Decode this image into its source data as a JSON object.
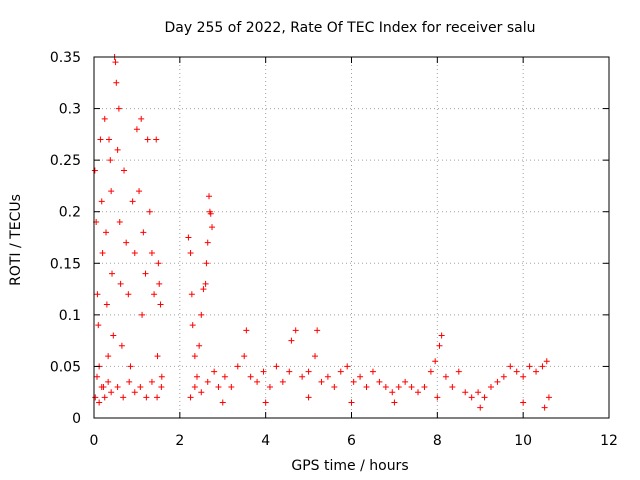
{
  "chart_data": {
    "type": "scatter",
    "title": "Day 255 of 2022, Rate Of TEC Index for receiver salu",
    "xlabel": "GPS time / hours",
    "ylabel": "ROTI / TECUs",
    "xlim": [
      0,
      12
    ],
    "ylim": [
      0,
      0.35
    ],
    "xticks": [
      0,
      2,
      4,
      6,
      8,
      10,
      12
    ],
    "xtick_labels": [
      "0",
      "2",
      "4",
      "6",
      "8",
      "10",
      "12"
    ],
    "yticks": [
      0,
      0.05,
      0.1,
      0.15,
      0.2,
      0.25,
      0.3,
      0.35
    ],
    "ytick_labels": [
      "0",
      "0.05",
      "0.1",
      "0.15",
      "0.2",
      "0.25",
      "0.3",
      "0.35"
    ],
    "grid": true,
    "marker": "plus",
    "color": "#ff0000",
    "series": [
      {
        "name": "ROTI",
        "points": [
          [
            0.02,
            0.24
          ],
          [
            0.05,
            0.19
          ],
          [
            0.08,
            0.12
          ],
          [
            0.1,
            0.09
          ],
          [
            0.12,
            0.05
          ],
          [
            0.15,
            0.27
          ],
          [
            0.18,
            0.21
          ],
          [
            0.2,
            0.16
          ],
          [
            0.22,
            0.03
          ],
          [
            0.25,
            0.29
          ],
          [
            0.28,
            0.18
          ],
          [
            0.3,
            0.11
          ],
          [
            0.33,
            0.06
          ],
          [
            0.35,
            0.27
          ],
          [
            0.38,
            0.25
          ],
          [
            0.4,
            0.22
          ],
          [
            0.42,
            0.14
          ],
          [
            0.45,
            0.08
          ],
          [
            0.48,
            0.35
          ],
          [
            0.5,
            0.345
          ],
          [
            0.52,
            0.325
          ],
          [
            0.55,
            0.26
          ],
          [
            0.58,
            0.3
          ],
          [
            0.6,
            0.19
          ],
          [
            0.62,
            0.13
          ],
          [
            0.65,
            0.07
          ],
          [
            0.7,
            0.24
          ],
          [
            0.75,
            0.17
          ],
          [
            0.8,
            0.12
          ],
          [
            0.85,
            0.05
          ],
          [
            0.9,
            0.21
          ],
          [
            0.95,
            0.16
          ],
          [
            1.0,
            0.28
          ],
          [
            1.05,
            0.22
          ],
          [
            1.1,
            0.29
          ],
          [
            1.12,
            0.1
          ],
          [
            1.15,
            0.18
          ],
          [
            1.2,
            0.14
          ],
          [
            1.25,
            0.27
          ],
          [
            1.3,
            0.2
          ],
          [
            1.35,
            0.16
          ],
          [
            1.4,
            0.12
          ],
          [
            1.45,
            0.27
          ],
          [
            1.48,
            0.06
          ],
          [
            1.5,
            0.15
          ],
          [
            1.52,
            0.13
          ],
          [
            1.55,
            0.11
          ],
          [
            1.58,
            0.04
          ],
          [
            0.03,
            0.02
          ],
          [
            0.07,
            0.04
          ],
          [
            0.12,
            0.015
          ],
          [
            0.18,
            0.03
          ],
          [
            0.25,
            0.02
          ],
          [
            0.33,
            0.035
          ],
          [
            0.4,
            0.025
          ],
          [
            0.55,
            0.03
          ],
          [
            0.68,
            0.02
          ],
          [
            0.82,
            0.035
          ],
          [
            0.95,
            0.025
          ],
          [
            1.08,
            0.03
          ],
          [
            1.22,
            0.02
          ],
          [
            1.35,
            0.035
          ],
          [
            1.47,
            0.02
          ],
          [
            1.57,
            0.03
          ],
          [
            2.2,
            0.175
          ],
          [
            2.25,
            0.16
          ],
          [
            2.28,
            0.12
          ],
          [
            2.3,
            0.09
          ],
          [
            2.35,
            0.06
          ],
          [
            2.4,
            0.04
          ],
          [
            2.45,
            0.07
          ],
          [
            2.5,
            0.1
          ],
          [
            2.55,
            0.125
          ],
          [
            2.6,
            0.13
          ],
          [
            2.62,
            0.15
          ],
          [
            2.65,
            0.17
          ],
          [
            2.68,
            0.215
          ],
          [
            2.7,
            0.2
          ],
          [
            2.72,
            0.198
          ],
          [
            2.75,
            0.185
          ],
          [
            2.25,
            0.02
          ],
          [
            2.35,
            0.03
          ],
          [
            2.5,
            0.025
          ],
          [
            2.65,
            0.035
          ],
          [
            2.8,
            0.045
          ],
          [
            2.9,
            0.03
          ],
          [
            3.05,
            0.04
          ],
          [
            3.2,
            0.03
          ],
          [
            3.35,
            0.05
          ],
          [
            3.5,
            0.06
          ],
          [
            3.55,
            0.085
          ],
          [
            3.65,
            0.04
          ],
          [
            3.8,
            0.035
          ],
          [
            3.95,
            0.045
          ],
          [
            4.1,
            0.03
          ],
          [
            4.25,
            0.05
          ],
          [
            4.4,
            0.035
          ],
          [
            4.55,
            0.045
          ],
          [
            4.6,
            0.075
          ],
          [
            4.7,
            0.085
          ],
          [
            4.85,
            0.04
          ],
          [
            5.0,
            0.045
          ],
          [
            5.15,
            0.06
          ],
          [
            5.2,
            0.085
          ],
          [
            5.3,
            0.035
          ],
          [
            5.45,
            0.04
          ],
          [
            5.6,
            0.03
          ],
          [
            5.75,
            0.045
          ],
          [
            5.9,
            0.05
          ],
          [
            6.05,
            0.035
          ],
          [
            6.2,
            0.04
          ],
          [
            6.35,
            0.03
          ],
          [
            6.5,
            0.045
          ],
          [
            6.65,
            0.035
          ],
          [
            6.8,
            0.03
          ],
          [
            6.95,
            0.025
          ],
          [
            7.1,
            0.03
          ],
          [
            7.25,
            0.035
          ],
          [
            7.4,
            0.03
          ],
          [
            7.55,
            0.025
          ],
          [
            7.7,
            0.03
          ],
          [
            7.85,
            0.045
          ],
          [
            7.95,
            0.055
          ],
          [
            8.05,
            0.07
          ],
          [
            8.1,
            0.08
          ],
          [
            8.2,
            0.04
          ],
          [
            8.35,
            0.03
          ],
          [
            8.5,
            0.045
          ],
          [
            8.65,
            0.025
          ],
          [
            8.8,
            0.02
          ],
          [
            8.95,
            0.025
          ],
          [
            9.1,
            0.02
          ],
          [
            9.25,
            0.03
          ],
          [
            9.4,
            0.035
          ],
          [
            9.55,
            0.04
          ],
          [
            9.7,
            0.05
          ],
          [
            9.85,
            0.045
          ],
          [
            10.0,
            0.04
          ],
          [
            10.15,
            0.05
          ],
          [
            10.3,
            0.045
          ],
          [
            10.45,
            0.05
          ],
          [
            10.55,
            0.055
          ],
          [
            10.6,
            0.02
          ],
          [
            3.0,
            0.015
          ],
          [
            4.0,
            0.015
          ],
          [
            5.0,
            0.02
          ],
          [
            6.0,
            0.015
          ],
          [
            7.0,
            0.015
          ],
          [
            8.0,
            0.02
          ],
          [
            9.0,
            0.01
          ],
          [
            10.0,
            0.015
          ],
          [
            10.5,
            0.01
          ]
        ]
      }
    ]
  }
}
